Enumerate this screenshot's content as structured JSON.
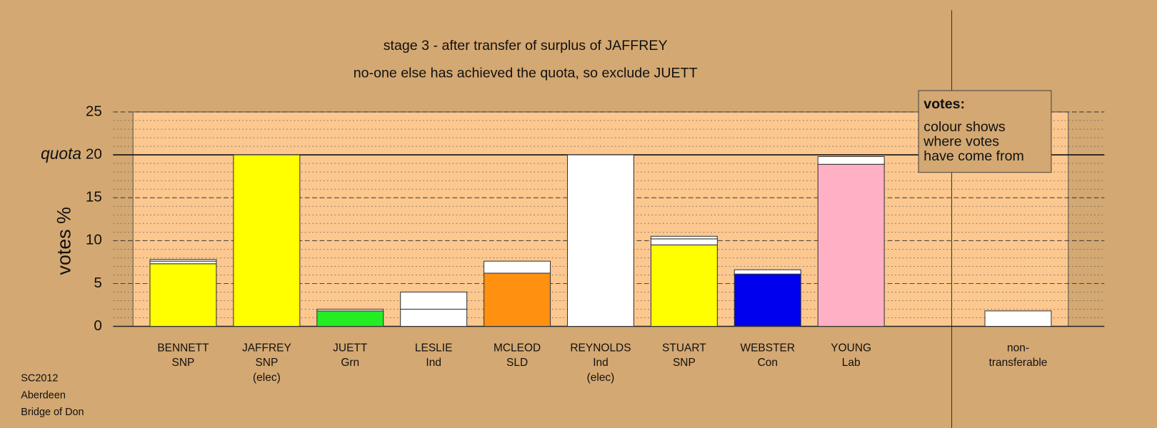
{
  "chart_data": {
    "type": "stacked-bar",
    "title": "stage 3 - after transfer of surplus of JAFFREY",
    "subtitle": "no-one else has achieved the quota, so exclude JUETT",
    "y_label": "votes %",
    "ylim": [
      0,
      25
    ],
    "yticks": [
      0,
      5,
      10,
      15,
      20,
      25
    ],
    "minor_grid_step": 1,
    "quota": {
      "label": "quota",
      "value": 20
    },
    "legend_box": {
      "title": "votes:",
      "lines": [
        "colour shows",
        "where votes",
        "have come from"
      ]
    },
    "footer": [
      "SC2012",
      "Aberdeen",
      "Bridge of Don"
    ],
    "bars": [
      {
        "label": [
          "BENNETT",
          "SNP"
        ],
        "segments": [
          {
            "value": 7.3,
            "color": "#ffff00"
          },
          {
            "value": 0.3,
            "color": "#ffffff"
          },
          {
            "value": 0.2,
            "color": "#ffffff"
          }
        ]
      },
      {
        "label": [
          "JAFFREY",
          "SNP",
          "(elec)"
        ],
        "segments": [
          {
            "value": 20,
            "color": "#ffff00"
          }
        ]
      },
      {
        "label": [
          "JUETT",
          "Grn"
        ],
        "segments": [
          {
            "value": 1.8,
            "color": "#22ee22"
          },
          {
            "value": 0.2,
            "color": "#ffffff"
          }
        ]
      },
      {
        "label": [
          "LESLIE",
          "Ind"
        ],
        "segments": [
          {
            "value": 2.0,
            "color": "#ffffff"
          },
          {
            "value": 2.0,
            "color": "#ffffff"
          }
        ]
      },
      {
        "label": [
          "MCLEOD",
          "SLD"
        ],
        "segments": [
          {
            "value": 6.2,
            "color": "#ff9010"
          },
          {
            "value": 1.4,
            "color": "#ffffff"
          }
        ]
      },
      {
        "label": [
          "REYNOLDS",
          "Ind",
          "(elec)"
        ],
        "segments": [
          {
            "value": 20,
            "color": "#ffffff"
          }
        ]
      },
      {
        "label": [
          "STUART",
          "SNP"
        ],
        "segments": [
          {
            "value": 9.5,
            "color": "#ffff00"
          },
          {
            "value": 0.7,
            "color": "#ffffff"
          },
          {
            "value": 0.3,
            "color": "#ffffff"
          }
        ]
      },
      {
        "label": [
          "WEBSTER",
          "Con"
        ],
        "segments": [
          {
            "value": 6.1,
            "color": "#0000ee"
          },
          {
            "value": 0.5,
            "color": "#ffffff"
          }
        ]
      },
      {
        "label": [
          "YOUNG",
          "Lab"
        ],
        "segments": [
          {
            "value": 18.9,
            "color": "#ffb0c4"
          },
          {
            "value": 0.9,
            "color": "#ffffff"
          }
        ]
      },
      {
        "label": [
          "non-",
          "transferable"
        ],
        "segments": [
          {
            "value": 1.8,
            "color": "#ffffff"
          }
        ]
      }
    ]
  }
}
